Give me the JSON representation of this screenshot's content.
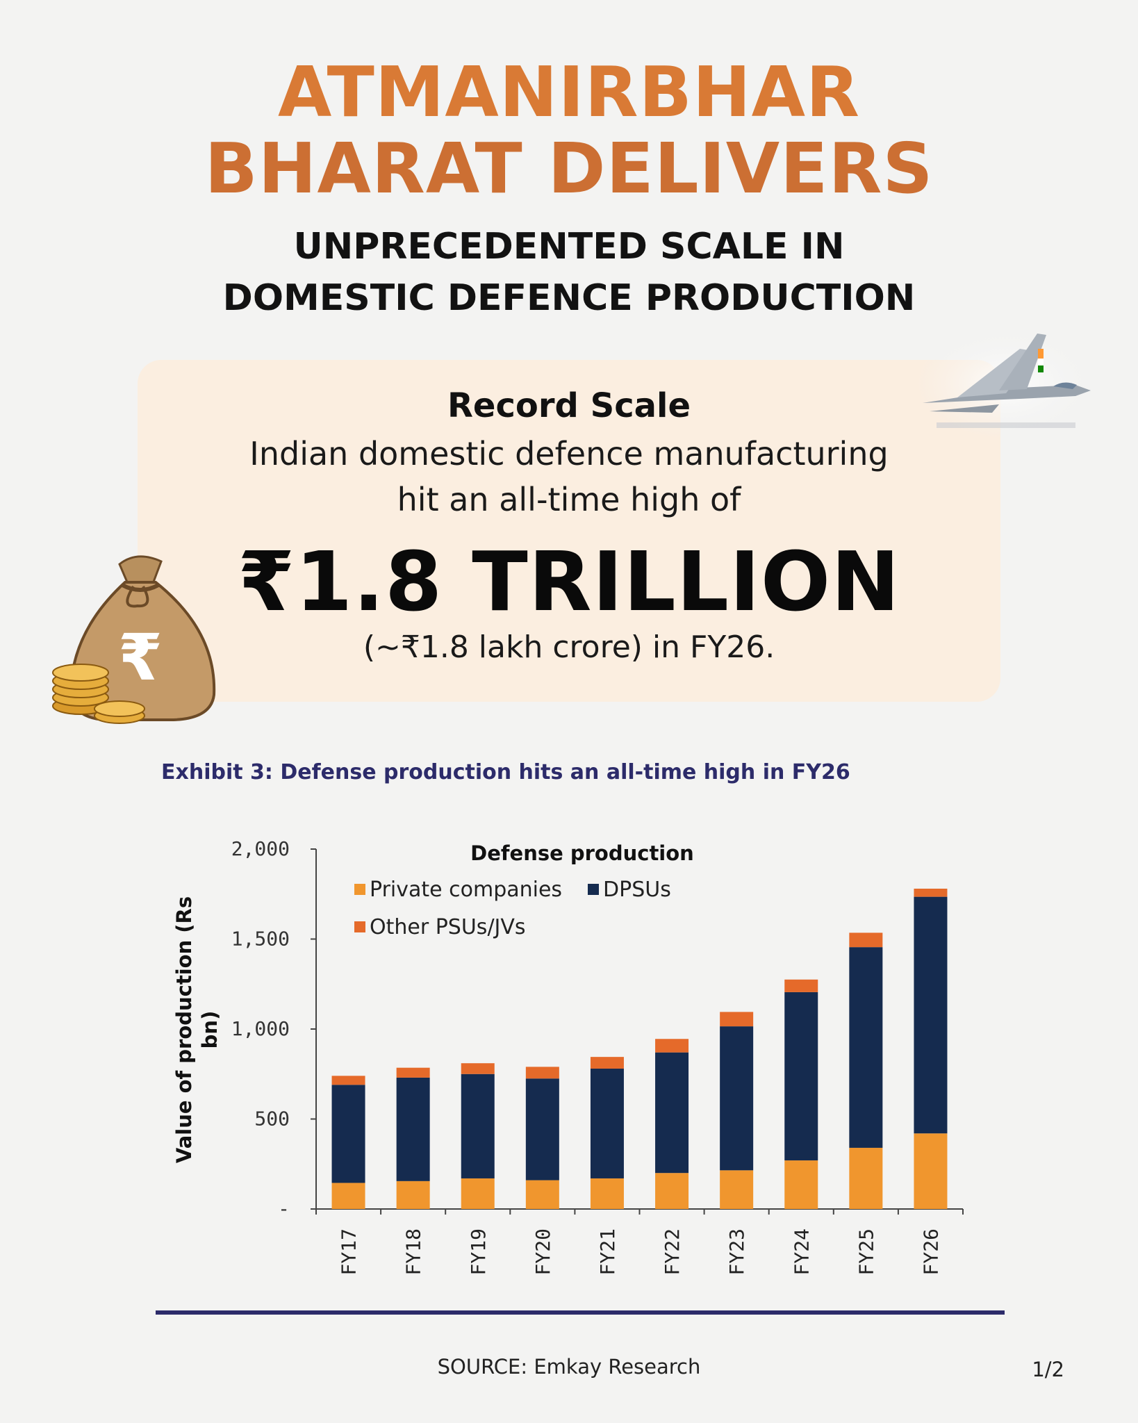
{
  "headline": {
    "line1": "ATMANIRBHAR",
    "line2": "BHARAT DELIVERS"
  },
  "subheadline": {
    "line1": "UNPRECEDENTED SCALE IN",
    "line2": "DOMESTIC DEFENCE PRODUCTION"
  },
  "card": {
    "title": "Record Scale",
    "body_line1": "Indian domestic defence manufacturing",
    "body_line2": "hit an all-time high of",
    "value": "₹1.8 TRILLION",
    "note": "(~₹1.8 lakh crore) in FY26.",
    "bag_symbol": "₹"
  },
  "exhibit_title": "Exhibit 3: Defense production hits an all-time high in FY26",
  "chart_data": {
    "type": "bar",
    "stacked": true,
    "title": "Defense production",
    "ylabel": "Value of production (Rs bn)",
    "xlabel": "",
    "ylim": [
      0,
      2000
    ],
    "yticks": [
      0,
      500,
      1000,
      1500,
      2000
    ],
    "ytick_labels": [
      "-",
      "500",
      "1,000",
      "1,500",
      "2,000"
    ],
    "legend_position": "top-left",
    "categories": [
      "FY17",
      "FY18",
      "FY19",
      "FY20",
      "FY21",
      "FY22",
      "FY23",
      "FY24",
      "FY25",
      "FY26"
    ],
    "series": [
      {
        "name": "Private companies",
        "color": "#f0962e",
        "values": [
          145,
          155,
          170,
          160,
          170,
          200,
          215,
          270,
          340,
          420
        ]
      },
      {
        "name": "DPSUs",
        "color": "#152b4f",
        "values": [
          545,
          575,
          580,
          565,
          610,
          670,
          800,
          935,
          1115,
          1315
        ]
      },
      {
        "name": "Other PSUs/JVs",
        "color": "#e56a2a",
        "values": [
          50,
          55,
          60,
          65,
          65,
          75,
          80,
          70,
          80,
          45
        ]
      }
    ]
  },
  "footer": {
    "source": "SOURCE: Emkay Research",
    "page": "1/2"
  },
  "colors": {
    "accent_orange": "#d97a35",
    "card_bg": "#fbeee0",
    "navy": "#2c2b6a"
  },
  "icons": [
    "fighter-jet-icon",
    "money-bag-icon",
    "coin-stack-icon"
  ]
}
